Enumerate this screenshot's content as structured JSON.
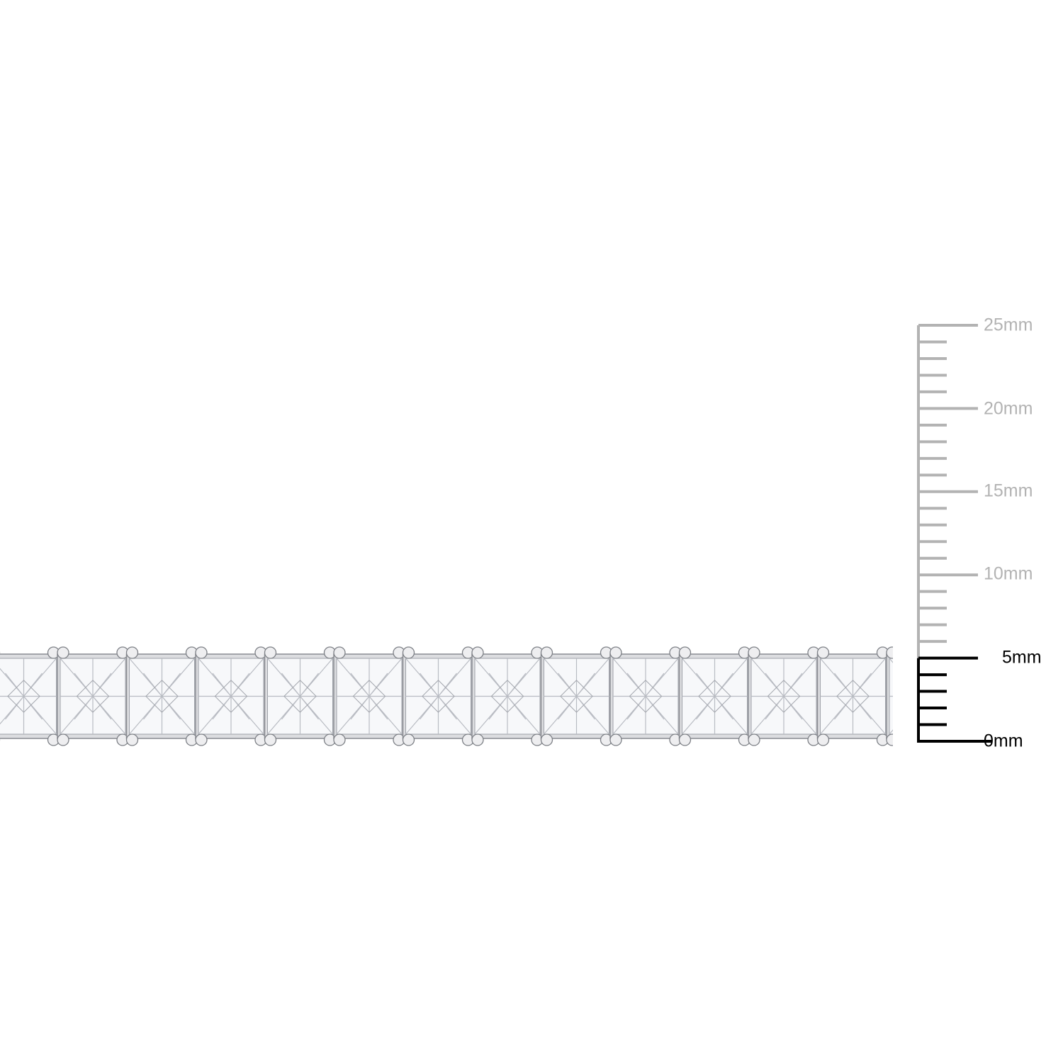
{
  "scale": {
    "unit": "mm",
    "max_mm": 25,
    "labels": [
      "0mm",
      "5mm",
      "10mm",
      "15mm",
      "20mm",
      "25mm"
    ],
    "active_color": "#000000",
    "inactive_color": "#b3b3b3",
    "highlighted_range_mm": [
      0,
      5
    ]
  },
  "product": {
    "type": "princess-cut stone tennis bracelet",
    "metal_color": "#e8e8ea",
    "stone_width_mm": 4
  }
}
